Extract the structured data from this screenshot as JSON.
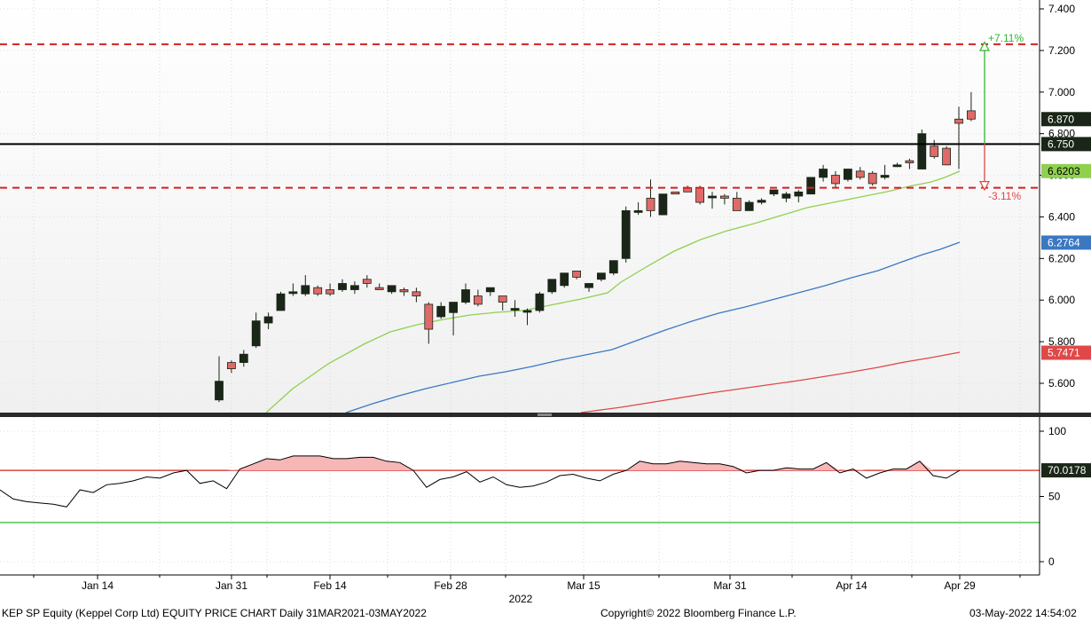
{
  "footer": {
    "left": "KEP SP Equity (Keppel Corp Ltd) EQUITY PRICE CHART  Daily 31MAR2021-03MAY2022",
    "center": "Copyright© 2022 Bloomberg Finance L.P.",
    "right": "03-May-2022 14:54:02"
  },
  "colors": {
    "up_candle": "#1a2617",
    "down_candle": "#e06a6a",
    "ma_short": "#8fd14f",
    "ma_mid": "#3a78c2",
    "ma_long": "#e04848",
    "dashed_level": "#d42020",
    "up_arrow": "#2db82d",
    "down_arrow": "#e04848",
    "rsi_line": "#000000",
    "rsi_upper": "#d42020",
    "rsi_lower": "#2db82d",
    "rsi_fill": "#f7b7b7",
    "price_tag_bg": "#1a2617",
    "ma_short_tag_bg": "#8fd14f",
    "ma_mid_tag_bg": "#3a78c2",
    "ma_long_tag_bg": "#e04848"
  },
  "chart_data": [
    {
      "type": "candlestick",
      "title": "",
      "x_ticks": [
        "Jan 14",
        "Jan 31",
        "Feb 14",
        "Feb 28",
        "Mar 15",
        "Mar 31",
        "Apr 14",
        "Apr 29"
      ],
      "x_group_label": "2022",
      "y_ticks": [
        "5.600",
        "5.800",
        "6.000",
        "6.200",
        "6.400",
        "6.600",
        "6.800",
        "7.000",
        "7.200",
        "7.400"
      ],
      "ylim": [
        5.46,
        7.45
      ],
      "candles": [
        {
          "o": 5.52,
          "h": 5.73,
          "l": 5.51,
          "c": 5.61
        },
        {
          "o": 5.7,
          "h": 5.71,
          "l": 5.65,
          "c": 5.67
        },
        {
          "o": 5.7,
          "h": 5.76,
          "l": 5.68,
          "c": 5.74
        },
        {
          "o": 5.78,
          "h": 5.94,
          "l": 5.77,
          "c": 5.9
        },
        {
          "o": 5.89,
          "h": 5.94,
          "l": 5.86,
          "c": 5.92
        },
        {
          "o": 5.95,
          "h": 6.04,
          "l": 5.95,
          "c": 6.03
        },
        {
          "o": 6.04,
          "h": 6.08,
          "l": 6.02,
          "c": 6.04
        },
        {
          "o": 6.03,
          "h": 6.12,
          "l": 6.02,
          "c": 6.07
        },
        {
          "o": 6.06,
          "h": 6.07,
          "l": 6.02,
          "c": 6.03
        },
        {
          "o": 6.05,
          "h": 6.08,
          "l": 6.02,
          "c": 6.03
        },
        {
          "o": 6.05,
          "h": 6.1,
          "l": 6.04,
          "c": 6.08
        },
        {
          "o": 6.05,
          "h": 6.09,
          "l": 6.03,
          "c": 6.07
        },
        {
          "o": 6.1,
          "h": 6.12,
          "l": 6.06,
          "c": 6.08
        },
        {
          "o": 6.06,
          "h": 6.08,
          "l": 6.05,
          "c": 6.05
        },
        {
          "o": 6.04,
          "h": 6.07,
          "l": 6.03,
          "c": 6.07
        },
        {
          "o": 6.05,
          "h": 6.06,
          "l": 6.02,
          "c": 6.04
        },
        {
          "o": 6.04,
          "h": 6.06,
          "l": 5.99,
          "c": 6.02
        },
        {
          "o": 5.98,
          "h": 5.99,
          "l": 5.79,
          "c": 5.86
        },
        {
          "o": 5.92,
          "h": 5.99,
          "l": 5.91,
          "c": 5.97
        },
        {
          "o": 5.94,
          "h": 5.99,
          "l": 5.83,
          "c": 5.99
        },
        {
          "o": 5.99,
          "h": 6.08,
          "l": 5.98,
          "c": 6.05
        },
        {
          "o": 6.02,
          "h": 6.05,
          "l": 5.97,
          "c": 5.98
        },
        {
          "o": 6.04,
          "h": 6.06,
          "l": 6.02,
          "c": 6.06
        },
        {
          "o": 6.02,
          "h": 6.02,
          "l": 5.95,
          "c": 5.99
        },
        {
          "o": 5.96,
          "h": 6.0,
          "l": 5.92,
          "c": 5.96
        },
        {
          "o": 5.95,
          "h": 5.96,
          "l": 5.88,
          "c": 5.95
        },
        {
          "o": 5.95,
          "h": 6.04,
          "l": 5.94,
          "c": 6.03
        },
        {
          "o": 6.04,
          "h": 6.1,
          "l": 6.03,
          "c": 6.1
        },
        {
          "o": 6.07,
          "h": 6.13,
          "l": 6.06,
          "c": 6.13
        },
        {
          "o": 6.14,
          "h": 6.14,
          "l": 6.1,
          "c": 6.11
        },
        {
          "o": 6.06,
          "h": 6.08,
          "l": 6.04,
          "c": 6.08
        },
        {
          "o": 6.1,
          "h": 6.13,
          "l": 6.09,
          "c": 6.13
        },
        {
          "o": 6.13,
          "h": 6.19,
          "l": 6.12,
          "c": 6.19
        },
        {
          "o": 6.2,
          "h": 6.45,
          "l": 6.18,
          "c": 6.43
        },
        {
          "o": 6.43,
          "h": 6.47,
          "l": 6.41,
          "c": 6.43
        },
        {
          "o": 6.49,
          "h": 6.58,
          "l": 6.4,
          "c": 6.43
        },
        {
          "o": 6.41,
          "h": 6.51,
          "l": 6.41,
          "c": 6.51
        },
        {
          "o": 6.52,
          "h": 6.52,
          "l": 6.51,
          "c": 6.51
        },
        {
          "o": 6.54,
          "h": 6.55,
          "l": 6.52,
          "c": 6.52
        },
        {
          "o": 6.54,
          "h": 6.55,
          "l": 6.46,
          "c": 6.47
        },
        {
          "o": 6.5,
          "h": 6.52,
          "l": 6.44,
          "c": 6.5
        },
        {
          "o": 6.5,
          "h": 6.51,
          "l": 6.46,
          "c": 6.49
        },
        {
          "o": 6.49,
          "h": 6.52,
          "l": 6.43,
          "c": 6.43
        },
        {
          "o": 6.43,
          "h": 6.48,
          "l": 6.43,
          "c": 6.47
        },
        {
          "o": 6.47,
          "h": 6.49,
          "l": 6.46,
          "c": 6.48
        },
        {
          "o": 6.51,
          "h": 6.53,
          "l": 6.5,
          "c": 6.53
        },
        {
          "o": 6.49,
          "h": 6.52,
          "l": 6.47,
          "c": 6.51
        },
        {
          "o": 6.5,
          "h": 6.53,
          "l": 6.47,
          "c": 6.52
        },
        {
          "o": 6.51,
          "h": 6.59,
          "l": 6.51,
          "c": 6.59
        },
        {
          "o": 6.59,
          "h": 6.65,
          "l": 6.57,
          "c": 6.63
        },
        {
          "o": 6.6,
          "h": 6.62,
          "l": 6.54,
          "c": 6.56
        },
        {
          "o": 6.58,
          "h": 6.63,
          "l": 6.57,
          "c": 6.63
        },
        {
          "o": 6.62,
          "h": 6.64,
          "l": 6.58,
          "c": 6.59
        },
        {
          "o": 6.61,
          "h": 6.62,
          "l": 6.55,
          "c": 6.56
        },
        {
          "o": 6.59,
          "h": 6.65,
          "l": 6.58,
          "c": 6.6
        },
        {
          "o": 6.65,
          "h": 6.66,
          "l": 6.64,
          "c": 6.65
        },
        {
          "o": 6.67,
          "h": 6.68,
          "l": 6.63,
          "c": 6.66
        },
        {
          "o": 6.63,
          "h": 6.82,
          "l": 6.63,
          "c": 6.8
        },
        {
          "o": 6.74,
          "h": 6.77,
          "l": 6.68,
          "c": 6.69
        },
        {
          "o": 6.73,
          "h": 6.74,
          "l": 6.65,
          "c": 6.65
        },
        {
          "o": 6.87,
          "h": 6.93,
          "l": 6.63,
          "c": 6.85
        },
        {
          "o": 6.91,
          "h": 7.0,
          "l": 6.86,
          "c": 6.87
        }
      ],
      "series": [
        {
          "name": "",
          "color": "ma_short",
          "x": [
            22,
            28,
            34,
            40,
            46,
            52,
            58,
            61
          ],
          "y": [
            5.46,
            5.6,
            5.78,
            5.87,
            5.94,
            6.0,
            6.08,
            6.18
          ],
          "tail_x": [
            64,
            70,
            76,
            82,
            88,
            94,
            100,
            106,
            112,
            118
          ],
          "tail_y": [
            6.23,
            6.33,
            6.38,
            6.43,
            6.48,
            6.53,
            6.57,
            6.62,
            6.66,
            6.62
          ]
        },
        {
          "name": "",
          "color": "ma_mid"
        },
        {
          "name": "",
          "color": "ma_long"
        }
      ],
      "horizontal_levels": [
        {
          "value": 7.23,
          "style": "dashed"
        },
        {
          "value": 6.75,
          "style": "solid"
        },
        {
          "value": 6.54,
          "style": "dashed"
        }
      ],
      "value_tags": [
        {
          "label": "6.870",
          "value": 6.87,
          "color": "price_tag_bg"
        },
        {
          "label": "6.750",
          "value": 6.75,
          "color": "price_tag_bg"
        },
        {
          "label": "6.6203",
          "value": 6.6203,
          "color": "ma_short_tag_bg"
        },
        {
          "label": "6.2764",
          "value": 6.2764,
          "color": "ma_mid_tag_bg"
        },
        {
          "label": "5.7471",
          "value": 5.7471,
          "color": "ma_long_tag_bg"
        }
      ],
      "annotations": [
        {
          "label": "+7.11%",
          "value": 7.23,
          "color": "up_arrow"
        },
        {
          "label": "-3.11%",
          "value": 6.54,
          "color": "down_arrow"
        }
      ]
    },
    {
      "type": "line",
      "title": "",
      "y_ticks": [
        "0",
        "50",
        "100"
      ],
      "ylim": [
        -5,
        110
      ],
      "upper_level": 70,
      "lower_level": 30,
      "value_tag": {
        "label": "70.0178",
        "value": 70.0178
      },
      "values": [
        55,
        48,
        46,
        45,
        44,
        42,
        55,
        53,
        59,
        60,
        62,
        65,
        64,
        68,
        70,
        60,
        62,
        56,
        71,
        75,
        79,
        78,
        81,
        81,
        81,
        79,
        79,
        80,
        80,
        77,
        76,
        70,
        57,
        63,
        65,
        69,
        61,
        65,
        59,
        57,
        58,
        61,
        66,
        67,
        64,
        62,
        67,
        70,
        77,
        75,
        75,
        77,
        76,
        75,
        75,
        73,
        68,
        70,
        70,
        72,
        71,
        71,
        76,
        68,
        71,
        64,
        68,
        71,
        71,
        77,
        66,
        64,
        70
      ]
    }
  ]
}
